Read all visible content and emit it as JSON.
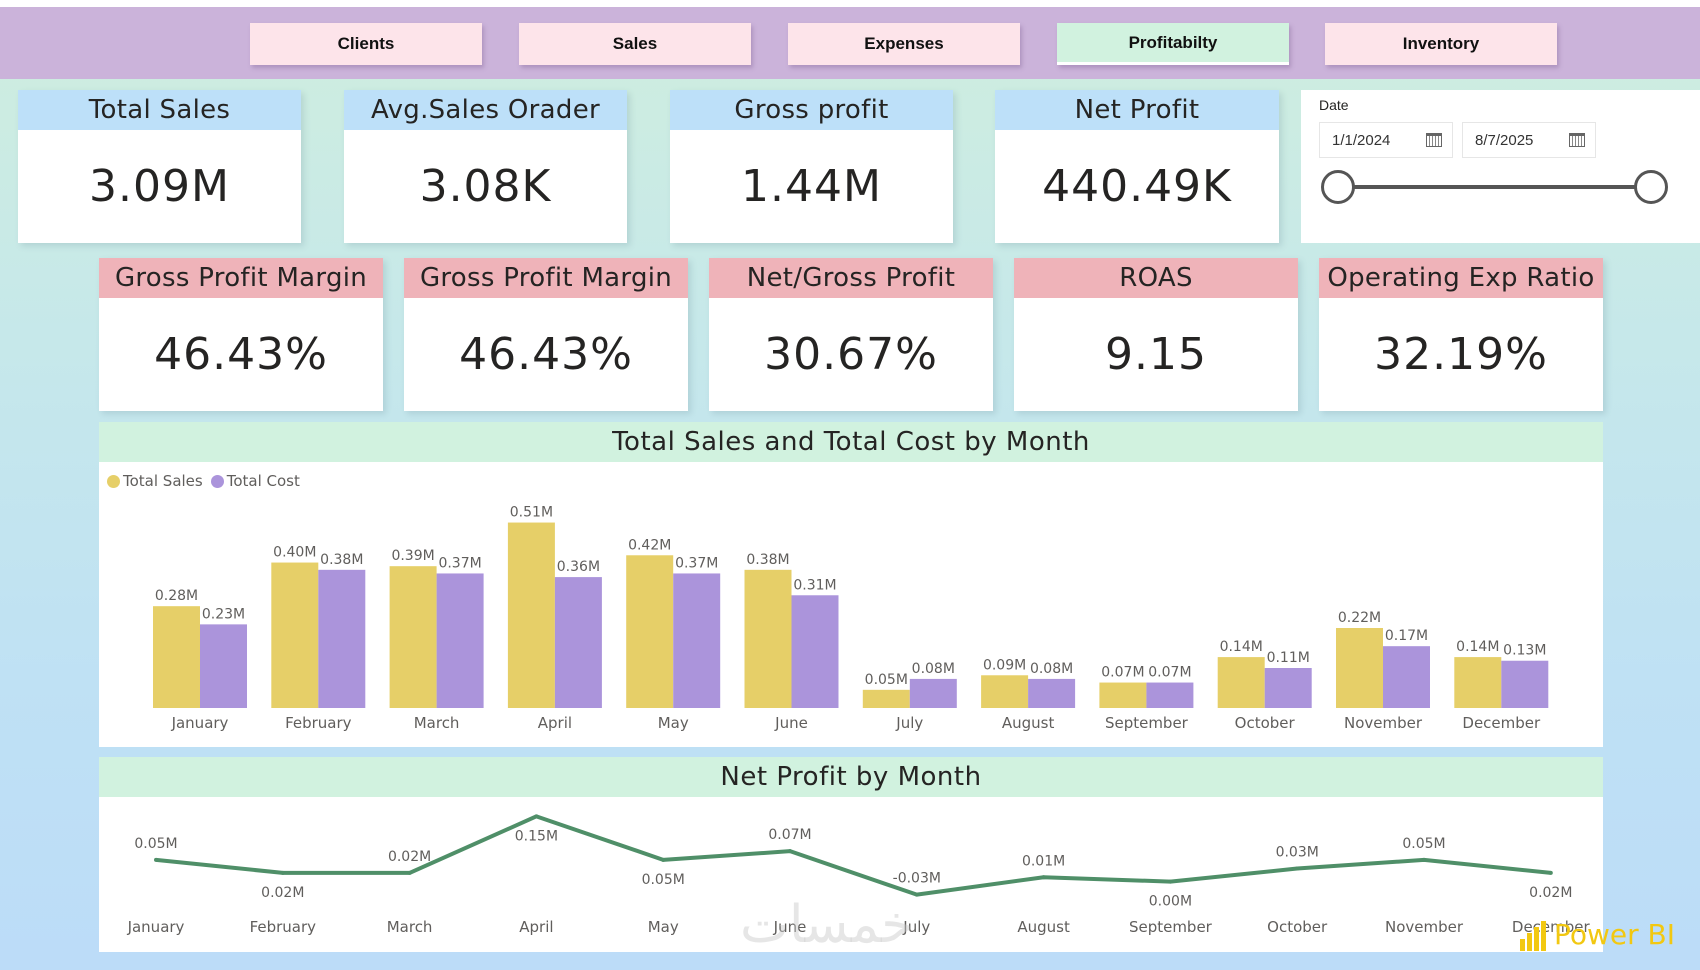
{
  "nav": {
    "buttons": [
      {
        "label": "Clients",
        "active": false
      },
      {
        "label": "Sales",
        "active": false
      },
      {
        "label": "Expenses",
        "active": false
      },
      {
        "label": "Profitabilty",
        "active": true
      },
      {
        "label": "Inventory",
        "active": false
      }
    ]
  },
  "kpis_top": [
    {
      "title": "Total Sales",
      "value": "3.09M"
    },
    {
      "title": "Avg.Sales Orader",
      "value": "3.08K"
    },
    {
      "title": "Gross profit",
      "value": "1.44M"
    },
    {
      "title": "Net Profit",
      "value": "440.49K"
    }
  ],
  "kpis_bottom": [
    {
      "title": "Gross Profit Margin",
      "value": "46.43%"
    },
    {
      "title": "Gross Profit Margin",
      "value": "46.43%"
    },
    {
      "title": "Net/Gross Profit",
      "value": "30.67%"
    },
    {
      "title": "ROAS",
      "value": "9.15"
    },
    {
      "title": "Operating Exp Ratio",
      "value": "32.19%"
    }
  ],
  "date_slicer": {
    "title": "Date",
    "start": "1/1/2024",
    "end": "8/7/2025",
    "icon": "calendar-icon",
    "range_fraction": [
      0,
      1
    ]
  },
  "colors": {
    "sales": "#e6cf68",
    "cost": "#ab94db",
    "line": "#4f8f68",
    "nav_bg": "#cbb3da",
    "nav_btn": "#fde4ea",
    "nav_active": "#d1f2df",
    "kpi_head_blue": "#bde0f9",
    "kpi_head_pink": "#efb3b9",
    "powerbi": "#f2c811"
  },
  "chart_data": [
    {
      "type": "bar",
      "title": "Total Sales and Total Cost by Month",
      "xlabel": "",
      "ylabel": "",
      "legend": "top-left",
      "grid": false,
      "ylim": [
        0,
        0.55
      ],
      "unit": "M",
      "categories": [
        "January",
        "February",
        "March",
        "April",
        "May",
        "June",
        "July",
        "August",
        "September",
        "October",
        "November",
        "December"
      ],
      "series": [
        {
          "name": "Total Sales",
          "values": [
            0.28,
            0.4,
            0.39,
            0.51,
            0.42,
            0.38,
            0.05,
            0.09,
            0.07,
            0.14,
            0.22,
            0.14
          ],
          "labels": [
            "0.28M",
            "0.40M",
            "0.39M",
            "0.51M",
            "0.42M",
            "0.38M",
            "0.05M",
            "0.09M",
            "0.07M",
            "0.14M",
            "0.22M",
            "0.14M"
          ]
        },
        {
          "name": "Total Cost",
          "values": [
            0.23,
            0.38,
            0.37,
            0.36,
            0.37,
            0.31,
            0.08,
            0.08,
            0.07,
            0.11,
            0.17,
            0.13
          ],
          "labels": [
            "0.23M",
            "0.38M",
            "0.37M",
            "0.36M",
            "0.37M",
            "0.31M",
            "0.08M",
            "0.08M",
            "0.07M",
            "0.11M",
            "0.17M",
            "0.13M"
          ]
        }
      ]
    },
    {
      "type": "line",
      "title": "Net Profit by Month",
      "xlabel": "",
      "ylabel": "",
      "grid": false,
      "ylim": [
        -0.04,
        0.16
      ],
      "unit": "M",
      "categories": [
        "January",
        "February",
        "March",
        "April",
        "May",
        "June",
        "July",
        "August",
        "September",
        "October",
        "November",
        "December"
      ],
      "series": [
        {
          "name": "Net Profit",
          "values": [
            0.05,
            0.02,
            0.02,
            0.15,
            0.05,
            0.07,
            -0.03,
            0.01,
            0.0,
            0.03,
            0.05,
            0.02
          ],
          "labels": [
            "0.05M",
            "0.02M",
            "0.02M",
            "0.15M",
            "0.05M",
            "0.07M",
            "-0.03M",
            "0.01M",
            "0.00M",
            "0.03M",
            "0.05M",
            "0.02M"
          ],
          "label_positions": [
            "above",
            "below",
            "above",
            "below",
            "below",
            "above",
            "above",
            "above",
            "below",
            "above",
            "above",
            "below"
          ]
        }
      ]
    }
  ],
  "branding": {
    "logo_text": "Power BI",
    "watermark_text": "خمسات"
  }
}
